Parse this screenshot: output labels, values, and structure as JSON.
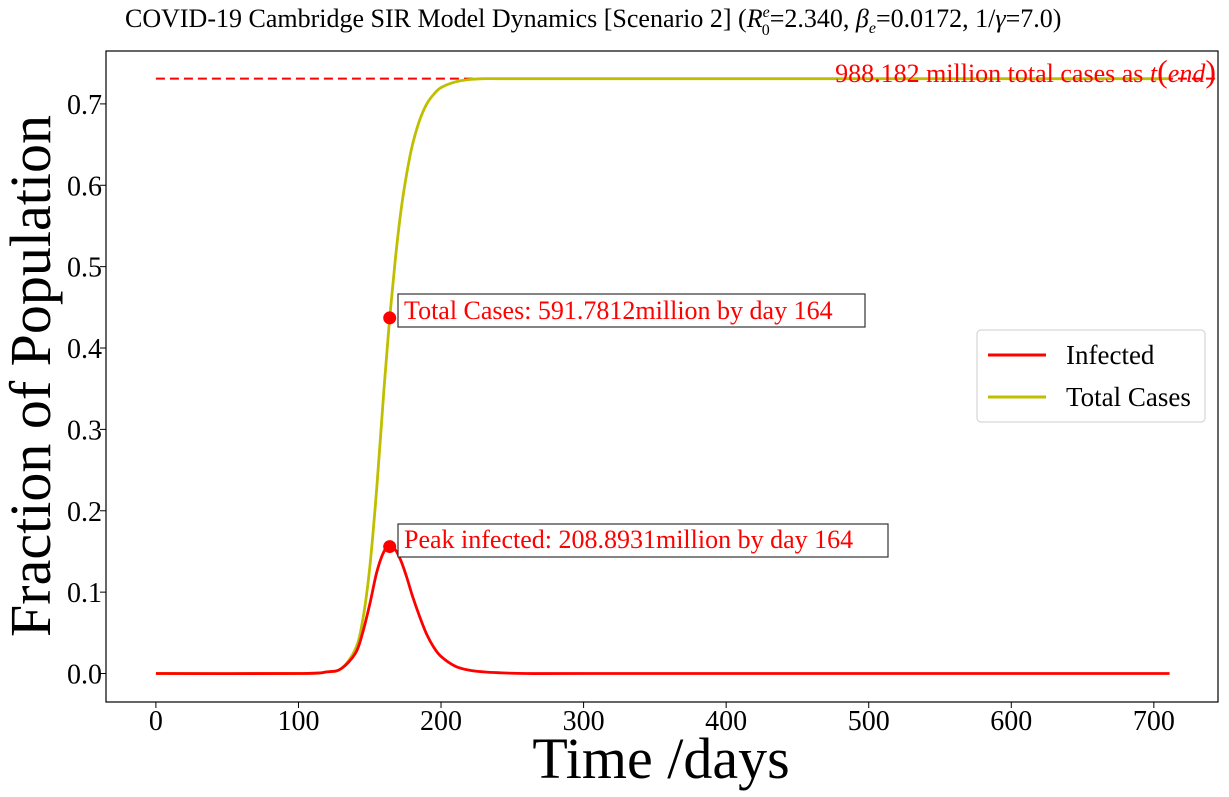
{
  "chart_data": {
    "type": "line",
    "title_prefix": "COVID-19 Cambridge SIR Model Dynamics [Scenario 2] (",
    "title_r0": "R",
    "title_r0_sup": "e",
    "title_r0_sub": "0",
    "title_r0_value": "=2.340, ",
    "title_beta": "β",
    "title_beta_sub": "e",
    "title_beta_value": "=0.0172, 1/",
    "title_gamma": "γ",
    "title_gamma_value": "=7.0)",
    "xlabel": "Time /days",
    "ylabel": "Fraction of Population",
    "xlim": [
      -35,
      745
    ],
    "ylim": [
      -0.035,
      0.765
    ],
    "xticks": [
      0,
      100,
      200,
      300,
      400,
      500,
      600,
      700
    ],
    "yticks": [
      0.0,
      0.1,
      0.2,
      0.3,
      0.4,
      0.5,
      0.6,
      0.7
    ],
    "ytick_labels": [
      "0.0",
      "0.1",
      "0.2",
      "0.3",
      "0.4",
      "0.5",
      "0.6",
      "0.7"
    ],
    "grid": false,
    "legend_position": "center-right",
    "series": [
      {
        "name": "Infected",
        "color": "#ff0000",
        "x": [
          0,
          100,
          120,
          130,
          140,
          145,
          150,
          155,
          160,
          164,
          168,
          172,
          176,
          180,
          185,
          190,
          195,
          200,
          210,
          220,
          230,
          240,
          260,
          300,
          400,
          500,
          600,
          711
        ],
        "y": [
          0.0,
          0.0,
          0.002,
          0.006,
          0.025,
          0.05,
          0.085,
          0.125,
          0.15,
          0.156,
          0.152,
          0.138,
          0.118,
          0.095,
          0.07,
          0.048,
          0.032,
          0.021,
          0.009,
          0.004,
          0.002,
          0.001,
          0.0,
          0.0,
          0.0,
          0.0,
          0.0,
          0.0
        ]
      },
      {
        "name": "Total Cases",
        "color": "#bfbf00",
        "x": [
          0,
          100,
          120,
          130,
          140,
          145,
          150,
          155,
          160,
          164,
          168,
          172,
          176,
          180,
          185,
          190,
          195,
          200,
          210,
          220,
          230,
          240,
          260,
          300,
          400,
          500,
          600,
          711
        ],
        "y": [
          0.0,
          0.0,
          0.002,
          0.006,
          0.03,
          0.065,
          0.13,
          0.23,
          0.35,
          0.437,
          0.51,
          0.57,
          0.615,
          0.65,
          0.68,
          0.7,
          0.712,
          0.72,
          0.727,
          0.73,
          0.731,
          0.731,
          0.731,
          0.731,
          0.731,
          0.731,
          0.731,
          0.731
        ]
      }
    ],
    "reference_line": {
      "y": 0.731,
      "x_start": 0,
      "x_end": 745,
      "color": "#ff0000",
      "style": "dashed",
      "label_text": "988.182 million total cases as ",
      "label_math_t": "t",
      "label_math_paren_open": "(",
      "label_math_end": "end",
      "label_math_paren_close": ")"
    },
    "markers": [
      {
        "x": 164,
        "y": 0.437,
        "color": "#ff0000",
        "label": "Total Cases: 591.7812million by day 164"
      },
      {
        "x": 164,
        "y": 0.156,
        "color": "#ff0000",
        "label": "Peak infected: 208.8931million by day 164"
      }
    ],
    "legend": [
      "Infected",
      "Total Cases"
    ]
  }
}
